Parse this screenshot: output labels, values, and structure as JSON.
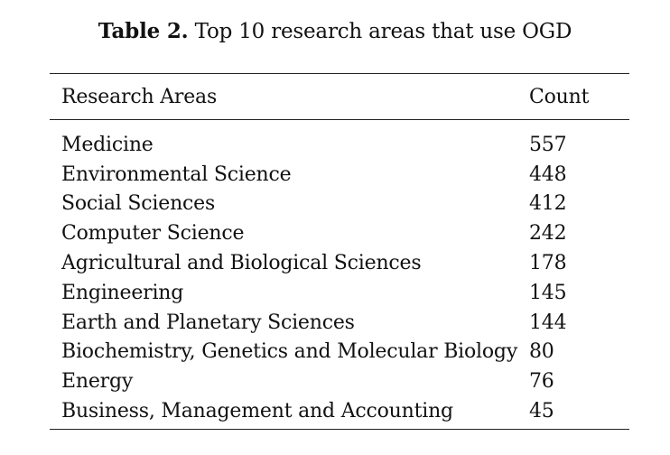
{
  "caption": {
    "label": "Table 2.",
    "text": "Top 10 research areas that use OGD"
  },
  "table": {
    "headers": [
      "Research Areas",
      "Count"
    ],
    "rows": [
      {
        "area": "Medicine",
        "count": "557"
      },
      {
        "area": "Environmental Science",
        "count": "448"
      },
      {
        "area": "Social Sciences",
        "count": "412"
      },
      {
        "area": "Computer Science",
        "count": "242"
      },
      {
        "area": "Agricultural and Biological Sciences",
        "count": "178"
      },
      {
        "area": "Engineering",
        "count": "145"
      },
      {
        "area": "Earth and Planetary Sciences",
        "count": "144"
      },
      {
        "area": "Biochemistry, Genetics and Molecular Biology",
        "count": "80"
      },
      {
        "area": "Energy",
        "count": "76"
      },
      {
        "area": "Business, Management and Accounting",
        "count": "45"
      }
    ]
  }
}
